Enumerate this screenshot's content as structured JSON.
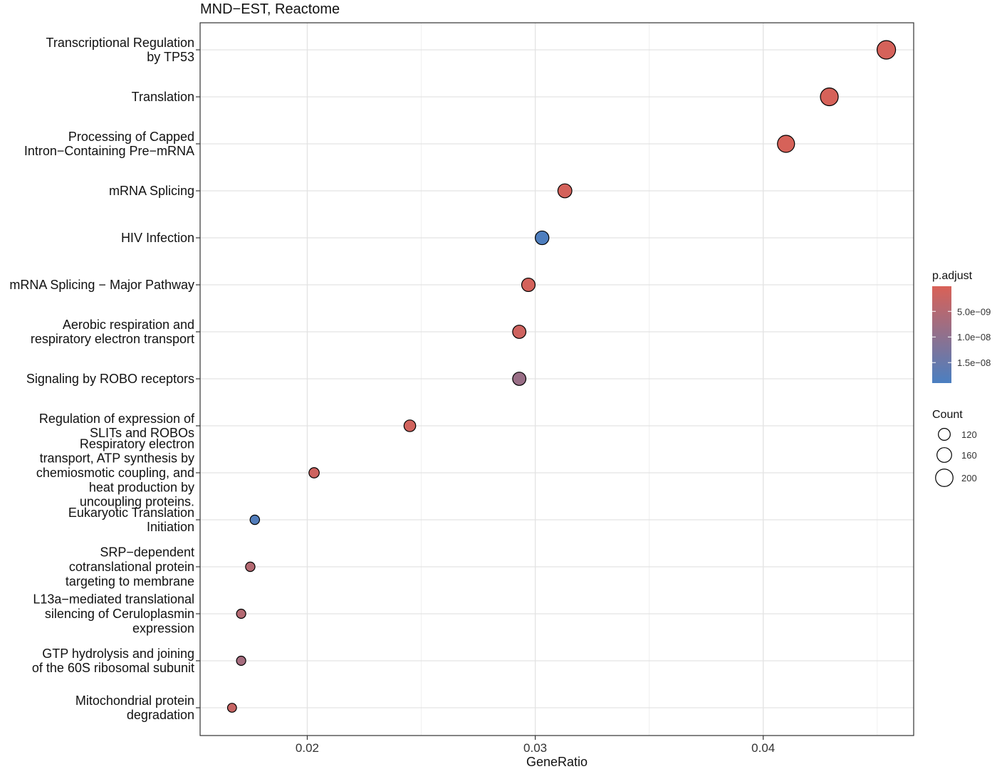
{
  "chart_data": {
    "type": "scatter",
    "title": "MND−EST, Reactome",
    "xlabel": "GeneRatio",
    "ylabel": "",
    "xlim": [
      0.0153,
      0.0466
    ],
    "x_ticks": [
      {
        "value": 0.02,
        "label": "0.02"
      },
      {
        "value": 0.03,
        "label": "0.03"
      },
      {
        "value": 0.04,
        "label": "0.04"
      }
    ],
    "grid": true,
    "categories": [
      {
        "label": [
          "Transcriptional Regulation",
          "by TP53"
        ],
        "x": 0.0454,
        "count": 215,
        "p_adjust": 6e-10
      },
      {
        "label": [
          "Translation"
        ],
        "x": 0.0429,
        "count": 205,
        "p_adjust": 5e-10
      },
      {
        "label": [
          "Processing of Capped",
          "Intron−Containing Pre−mRNA"
        ],
        "x": 0.041,
        "count": 195,
        "p_adjust": 5e-10
      },
      {
        "label": [
          "mRNA Splicing"
        ],
        "x": 0.0313,
        "count": 150,
        "p_adjust": 8e-10
      },
      {
        "label": [
          "HIV Infection"
        ],
        "x": 0.0303,
        "count": 145,
        "p_adjust": 1.85e-08
      },
      {
        "label": [
          "mRNA Splicing − Major Pathway"
        ],
        "x": 0.0297,
        "count": 142,
        "p_adjust": 8e-10
      },
      {
        "label": [
          "Aerobic respiration and",
          "respiratory electron transport"
        ],
        "x": 0.0293,
        "count": 140,
        "p_adjust": 1.5e-09
      },
      {
        "label": [
          "Signaling by ROBO receptors"
        ],
        "x": 0.0293,
        "count": 140,
        "p_adjust": 8.5e-09
      },
      {
        "label": [
          "Regulation of expression of",
          "SLITs and ROBOs"
        ],
        "x": 0.0245,
        "count": 117,
        "p_adjust": 1.2e-09
      },
      {
        "label": [
          "Respiratory electron",
          "transport, ATP synthesis by",
          "chemiosmotic coupling, and",
          "heat production by",
          "uncoupling proteins."
        ],
        "x": 0.0203,
        "count": 97,
        "p_adjust": 1.5e-09
      },
      {
        "label": [
          "Eukaryotic Translation",
          "Initiation"
        ],
        "x": 0.0177,
        "count": 85,
        "p_adjust": 1.8e-08
      },
      {
        "label": [
          "SRP−dependent",
          "cotranslational protein",
          "targeting to membrane"
        ],
        "x": 0.0175,
        "count": 84,
        "p_adjust": 5e-09
      },
      {
        "label": [
          "L13a−mediated translational",
          "silencing of Ceruloplasmin",
          "expression"
        ],
        "x": 0.0171,
        "count": 82,
        "p_adjust": 5e-09
      },
      {
        "label": [
          "GTP hydrolysis and joining",
          "of the 60S ribosomal subunit"
        ],
        "x": 0.0171,
        "count": 82,
        "p_adjust": 7e-09
      },
      {
        "label": [
          "Mitochondrial protein",
          "degradation"
        ],
        "x": 0.0167,
        "count": 78,
        "p_adjust": 2.5e-09
      }
    ],
    "color_legend": {
      "title": "p.adjust",
      "low_color": "#d96157",
      "high_color": "#4a7fc1",
      "range": [
        1e-10,
        1.9e-08
      ],
      "ticks": [
        {
          "value": 5e-09,
          "label": "5.0e−09"
        },
        {
          "value": 1e-08,
          "label": "1.0e−08"
        },
        {
          "value": 1.5e-08,
          "label": "1.5e−08"
        }
      ]
    },
    "size_legend": {
      "title": "Count",
      "items": [
        {
          "value": 120,
          "label": "120"
        },
        {
          "value": 160,
          "label": "160"
        },
        {
          "value": 200,
          "label": "200"
        }
      ]
    },
    "legend_position": "right"
  }
}
